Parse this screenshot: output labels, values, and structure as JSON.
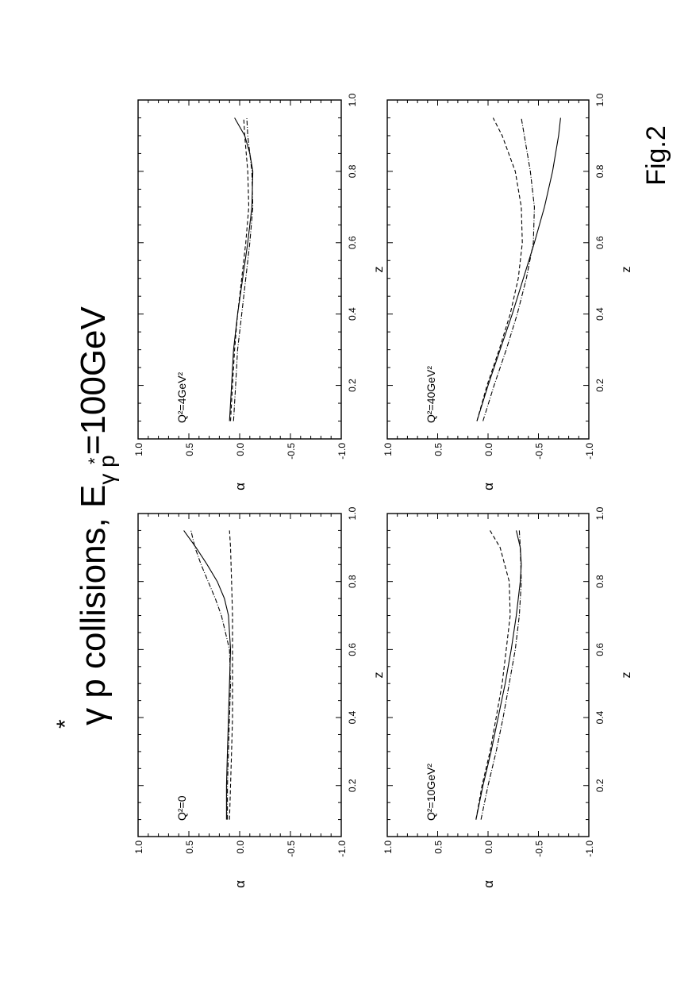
{
  "figure": {
    "title_main": "γ p collisions,  E",
    "title_star": "*",
    "title_sub_gp": "γ p",
    "title_sub_star": "*",
    "title_tail": "=100GeV",
    "caption": "Fig.2"
  },
  "chart_data": [
    {
      "type": "line",
      "annotation": "Q²=0",
      "xlabel": "z",
      "ylabel": "α",
      "xlim": [
        0.05,
        1.0
      ],
      "ylim": [
        -1.0,
        1.0
      ],
      "xticks": [
        "0.2",
        "0.4",
        "0.6",
        "0.8",
        "1.0"
      ],
      "yticks": [
        "1.0",
        "0.5",
        "0.0",
        "-0.5",
        "-1.0"
      ],
      "grid": false,
      "series": [
        {
          "style": "solid",
          "x": [
            0.1,
            0.2,
            0.3,
            0.4,
            0.5,
            0.6,
            0.7,
            0.75,
            0.8,
            0.85,
            0.9,
            0.95
          ],
          "y": [
            0.13,
            0.13,
            0.12,
            0.11,
            0.1,
            0.09,
            0.11,
            0.15,
            0.22,
            0.32,
            0.43,
            0.55
          ]
        },
        {
          "style": "dashed",
          "x": [
            0.1,
            0.2,
            0.3,
            0.4,
            0.5,
            0.6,
            0.7,
            0.8,
            0.9,
            0.95
          ],
          "y": [
            0.1,
            0.09,
            0.08,
            0.07,
            0.07,
            0.07,
            0.07,
            0.08,
            0.09,
            0.1
          ]
        },
        {
          "style": "dashdot",
          "x": [
            0.1,
            0.2,
            0.3,
            0.4,
            0.5,
            0.6,
            0.7,
            0.75,
            0.8,
            0.85,
            0.9,
            0.95
          ],
          "y": [
            0.12,
            0.12,
            0.11,
            0.1,
            0.09,
            0.1,
            0.18,
            0.24,
            0.31,
            0.38,
            0.44,
            0.48
          ]
        }
      ]
    },
    {
      "type": "line",
      "annotation": "Q²=4GeV²",
      "xlabel": "z",
      "ylabel": "α",
      "xlim": [
        0.05,
        1.0
      ],
      "ylim": [
        -1.0,
        1.0
      ],
      "xticks": [
        "0.2",
        "0.4",
        "0.6",
        "0.8",
        "1.0"
      ],
      "yticks": [
        "1.0",
        "0.5",
        "0.0",
        "-0.5",
        "-1.0"
      ],
      "grid": false,
      "series": [
        {
          "style": "solid",
          "x": [
            0.1,
            0.2,
            0.3,
            0.4,
            0.5,
            0.6,
            0.7,
            0.8,
            0.85,
            0.9,
            0.95
          ],
          "y": [
            0.1,
            0.08,
            0.06,
            0.02,
            -0.03,
            -0.08,
            -0.12,
            -0.13,
            -0.1,
            -0.05,
            0.05
          ]
        },
        {
          "style": "dashed",
          "x": [
            0.1,
            0.2,
            0.3,
            0.4,
            0.5,
            0.6,
            0.7,
            0.8,
            0.9,
            0.95
          ],
          "y": [
            0.09,
            0.07,
            0.05,
            0.02,
            -0.02,
            -0.06,
            -0.09,
            -0.08,
            -0.05,
            -0.04
          ]
        },
        {
          "style": "dashdot",
          "x": [
            0.1,
            0.2,
            0.3,
            0.4,
            0.5,
            0.6,
            0.7,
            0.8,
            0.9,
            0.95
          ],
          "y": [
            0.06,
            0.04,
            0.02,
            -0.02,
            -0.06,
            -0.1,
            -0.13,
            -0.12,
            -0.08,
            -0.07
          ]
        }
      ]
    },
    {
      "type": "line",
      "annotation": "Q²=10GeV²",
      "xlabel": "z",
      "ylabel": "α",
      "xlim": [
        0.05,
        1.0
      ],
      "ylim": [
        -1.0,
        1.0
      ],
      "xticks": [
        "0.2",
        "0.4",
        "0.6",
        "0.8",
        "1.0"
      ],
      "yticks": [
        "1.0",
        "0.5",
        "0.0",
        "-0.5",
        "-1.0"
      ],
      "grid": false,
      "series": [
        {
          "style": "solid",
          "x": [
            0.1,
            0.2,
            0.3,
            0.4,
            0.5,
            0.6,
            0.7,
            0.8,
            0.85,
            0.9,
            0.95
          ],
          "y": [
            0.12,
            0.05,
            -0.03,
            -0.1,
            -0.17,
            -0.23,
            -0.28,
            -0.32,
            -0.33,
            -0.32,
            -0.28
          ]
        },
        {
          "style": "dashed",
          "x": [
            0.1,
            0.2,
            0.3,
            0.4,
            0.5,
            0.6,
            0.7,
            0.8,
            0.9,
            0.95
          ],
          "y": [
            0.12,
            0.06,
            -0.02,
            -0.08,
            -0.14,
            -0.18,
            -0.22,
            -0.21,
            -0.12,
            -0.02
          ]
        },
        {
          "style": "dashdot",
          "x": [
            0.1,
            0.2,
            0.3,
            0.4,
            0.5,
            0.6,
            0.7,
            0.8,
            0.9,
            0.95
          ],
          "y": [
            0.07,
            0.0,
            -0.08,
            -0.15,
            -0.21,
            -0.27,
            -0.31,
            -0.33,
            -0.32,
            -0.31
          ]
        }
      ]
    },
    {
      "type": "line",
      "annotation": "Q²=40GeV²",
      "xlabel": "z",
      "ylabel": "α",
      "xlim": [
        0.05,
        1.0
      ],
      "ylim": [
        -1.0,
        1.0
      ],
      "xticks": [
        "0.2",
        "0.4",
        "0.6",
        "0.8",
        "1.0"
      ],
      "yticks": [
        "1.0",
        "0.5",
        "0.0",
        "-0.5",
        "-1.0"
      ],
      "grid": false,
      "series": [
        {
          "style": "solid",
          "x": [
            0.1,
            0.2,
            0.3,
            0.4,
            0.5,
            0.6,
            0.7,
            0.8,
            0.9,
            0.95
          ],
          "y": [
            0.11,
            0.0,
            -0.12,
            -0.24,
            -0.35,
            -0.46,
            -0.56,
            -0.64,
            -0.7,
            -0.72
          ]
        },
        {
          "style": "dashed",
          "x": [
            0.1,
            0.2,
            0.3,
            0.4,
            0.5,
            0.6,
            0.7,
            0.8,
            0.9,
            0.95
          ],
          "y": [
            0.11,
            0.01,
            -0.11,
            -0.22,
            -0.3,
            -0.34,
            -0.33,
            -0.27,
            -0.14,
            -0.05
          ]
        },
        {
          "style": "dashdot",
          "x": [
            0.1,
            0.2,
            0.3,
            0.4,
            0.5,
            0.6,
            0.7,
            0.8,
            0.9,
            0.95
          ],
          "y": [
            0.05,
            -0.06,
            -0.18,
            -0.29,
            -0.38,
            -0.45,
            -0.46,
            -0.42,
            -0.36,
            -0.33
          ]
        }
      ]
    }
  ]
}
